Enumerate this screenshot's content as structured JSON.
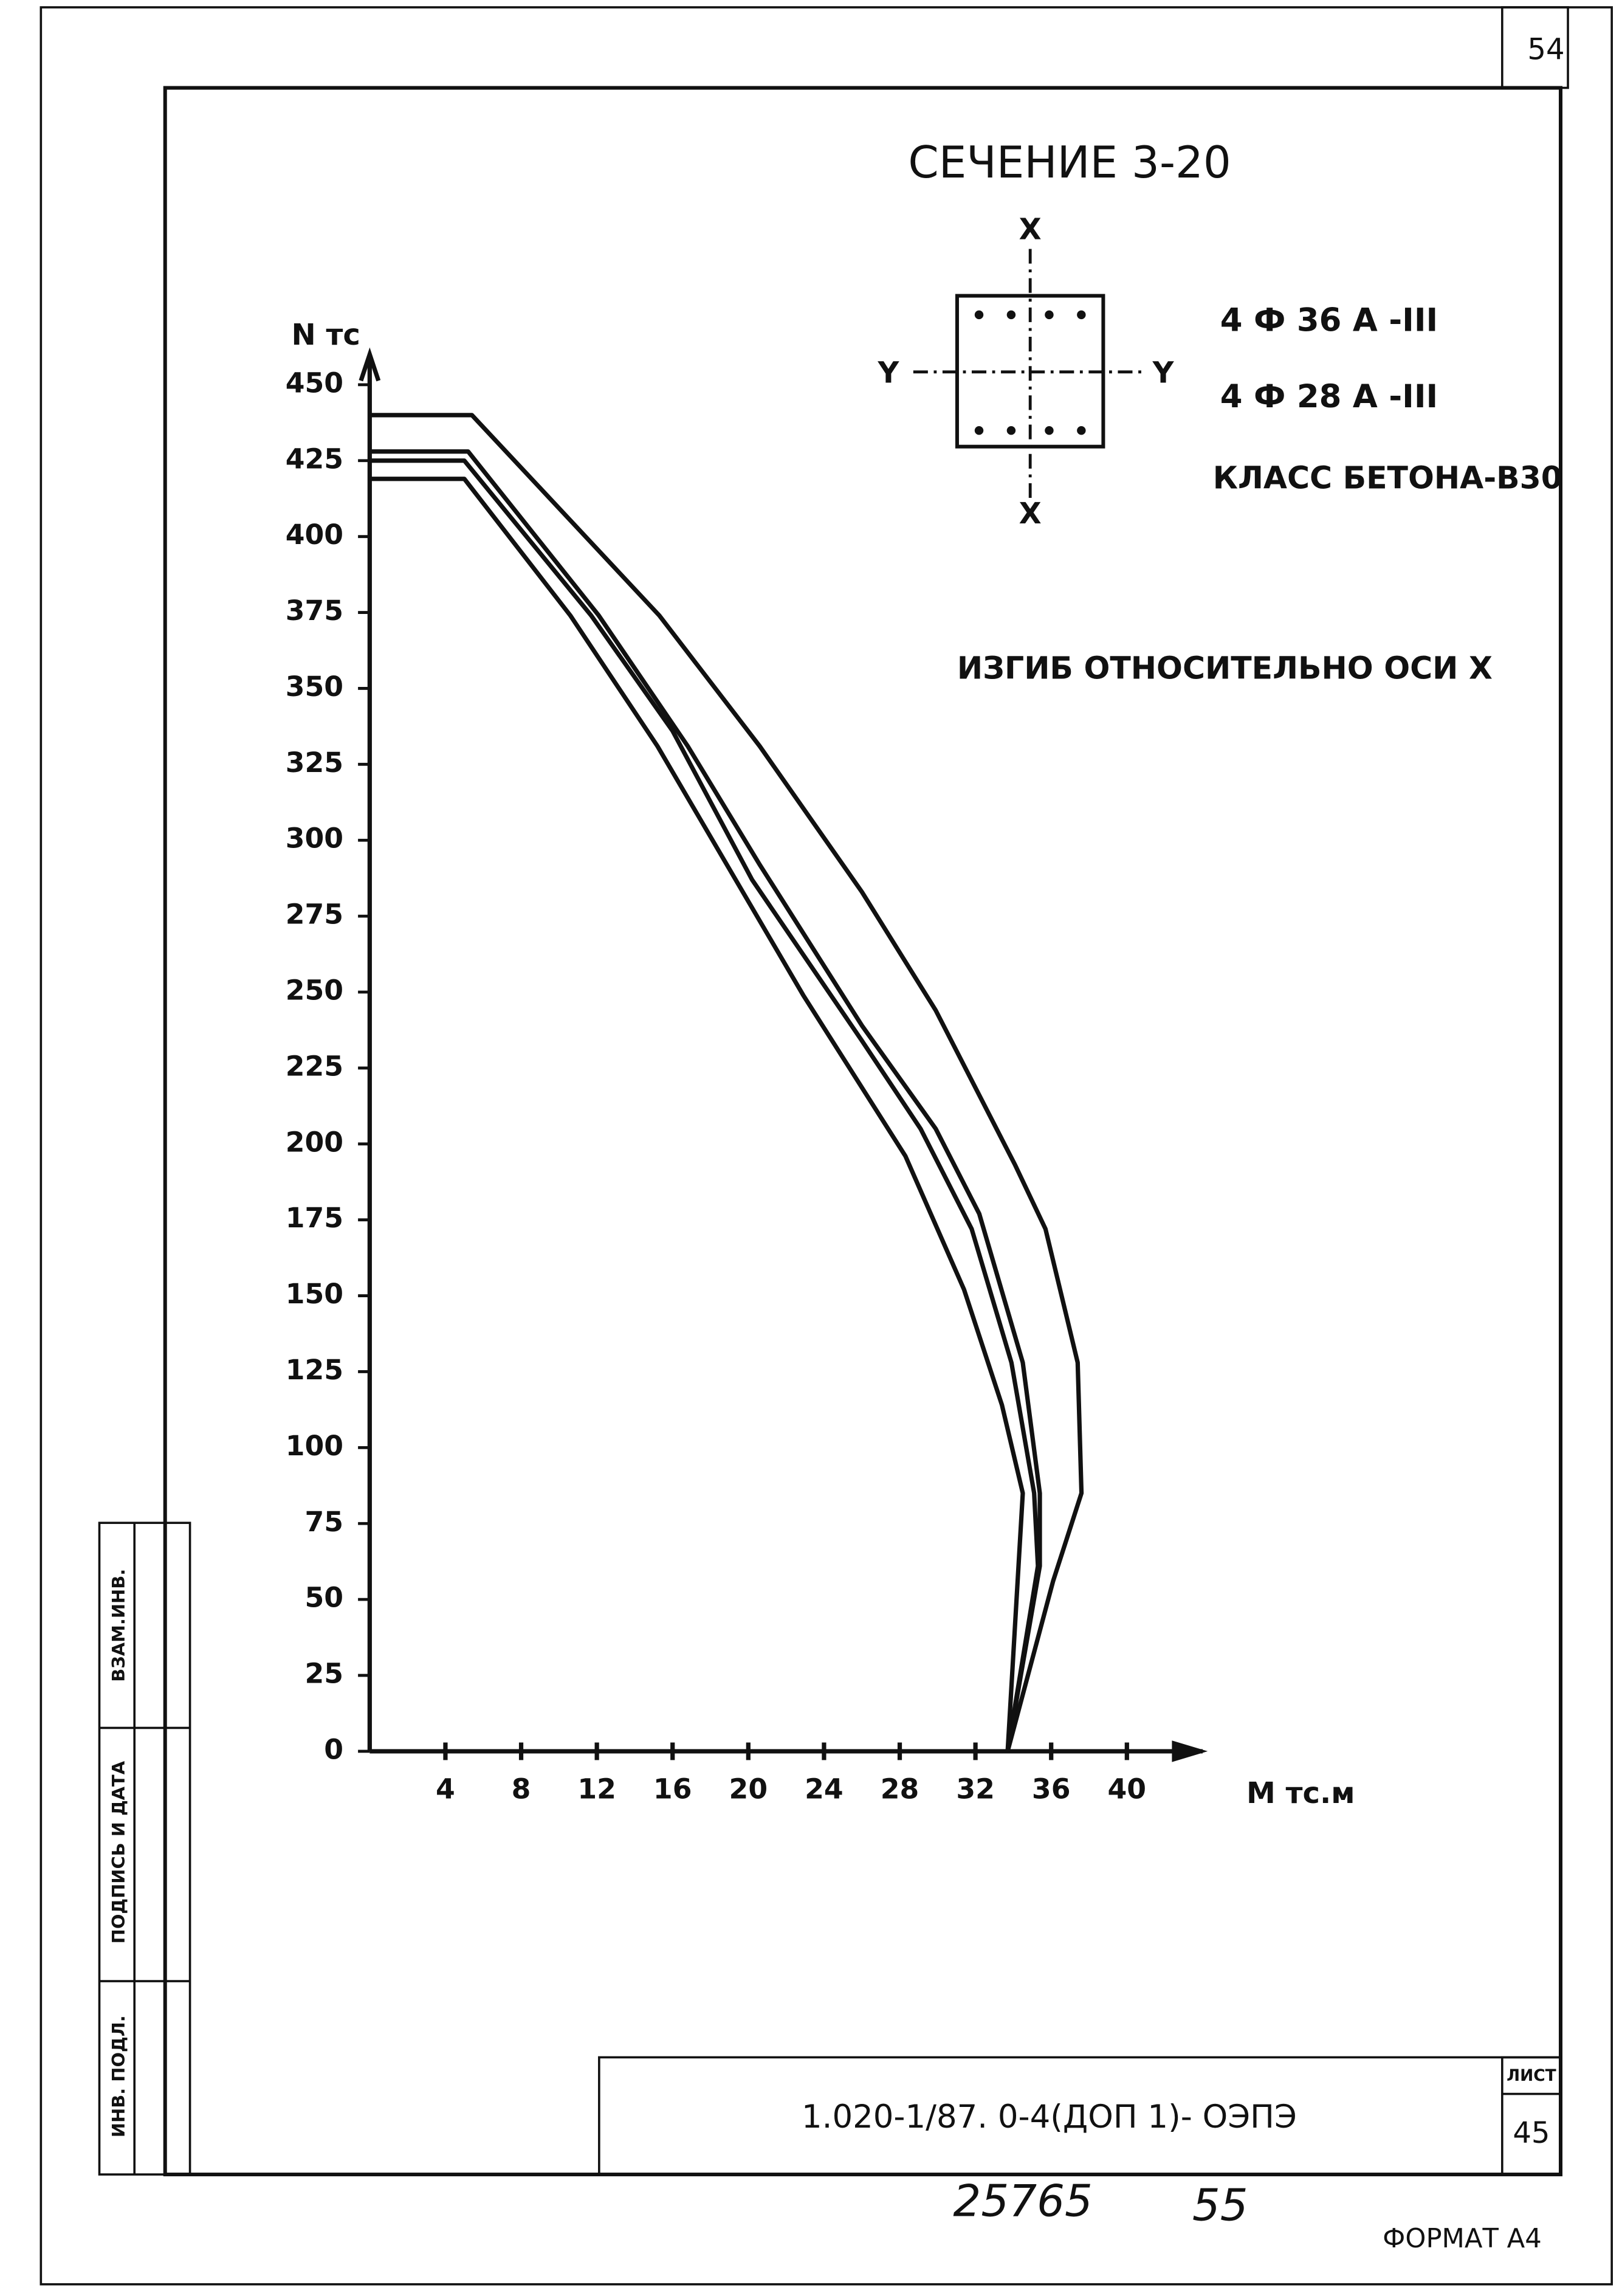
{
  "chart_data": {
    "type": "line",
    "title": "СЕЧЕНИЕ 3-20",
    "section_labels": {
      "x_top": "X",
      "x_bottom": "X",
      "y_left": "Y",
      "y_right": "Y"
    },
    "reinforcement": [
      "4 Ф 36 А -III",
      "4 Ф 28 А -III"
    ],
    "concrete_class": "КЛАСС БЕТОНА-В30",
    "annotation": "ИЗГИБ ОТНОСИТЕЛЬНО ОСИ X",
    "y_label": "N тс",
    "x_label": "M тс.м",
    "xlim": [
      0,
      44
    ],
    "ylim": [
      0,
      460
    ],
    "xticks": [
      4,
      8,
      12,
      16,
      20,
      24,
      28,
      32,
      36,
      40
    ],
    "yticks": [
      0,
      25,
      50,
      75,
      100,
      125,
      150,
      175,
      200,
      225,
      250,
      275,
      300,
      325,
      350,
      375,
      400,
      425,
      450
    ],
    "grid": false,
    "series": [
      {
        "color": "#111111",
        "x": [
          0,
          5.4,
          15.3,
          20.6,
          26,
          29.9,
          34.1,
          35.7,
          37.4,
          37.6,
          36.1,
          33.7
        ],
        "values": [
          440,
          440,
          374,
          331,
          283,
          244,
          193,
          172,
          128,
          85,
          56,
          0
        ]
      },
      {
        "color": "#111111",
        "x": [
          0,
          5.2,
          12.1,
          16.8,
          20.6,
          26,
          29.9,
          32.2,
          34.5,
          35.4,
          35.4,
          33.7
        ],
        "values": [
          428,
          428,
          374,
          331,
          292,
          239,
          205,
          177,
          128,
          85,
          61,
          0
        ]
      },
      {
        "color": "#111111",
        "x": [
          0,
          5,
          11.7,
          16,
          20.2,
          26,
          29.1,
          31.8,
          33.9,
          35.1,
          35.3,
          33.7
        ],
        "values": [
          425,
          425,
          374,
          336,
          287,
          234,
          205,
          172,
          128,
          85,
          61,
          0
        ]
      },
      {
        "color": "#111111",
        "x": [
          0,
          5,
          10.6,
          15.2,
          22.9,
          28.3,
          31.4,
          33.4,
          34.5,
          33.7
        ],
        "values": [
          419,
          419,
          374,
          331,
          249,
          196,
          152,
          114,
          85,
          0
        ]
      }
    ]
  },
  "document": {
    "page_number": "54",
    "sheet_label": "ЛИСТ",
    "sheet_number": "45",
    "designation": "1.020-1/87. 0-4(ДОП 1)- ОЭПЭ",
    "handwritten": [
      "25765",
      "55"
    ],
    "format": "ФОРМАТ А4",
    "side_stamp": [
      "ВЗАМ.ИНВ.",
      "ПОДПИСЬ И ДАТА",
      "ИНВ. ПОДЛ."
    ]
  }
}
